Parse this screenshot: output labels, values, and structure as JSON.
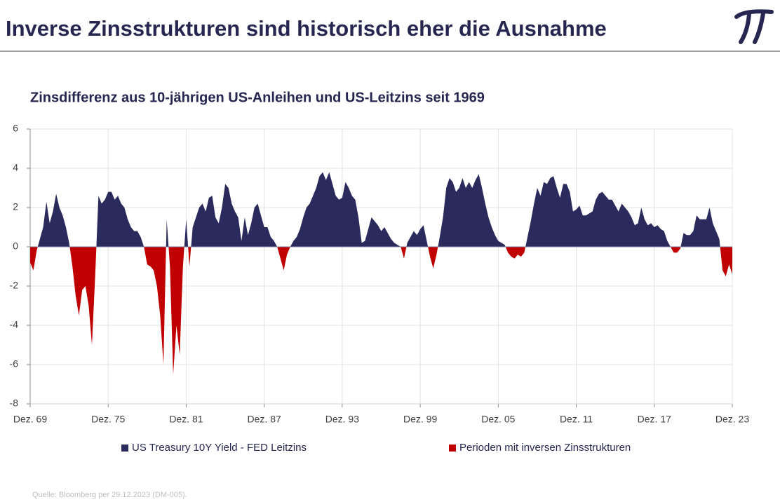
{
  "header": {
    "title": "Inverse Zinsstrukturen sind historisch eher die Ausnahme"
  },
  "footer": {
    "source": "Quelle: Bloomberg per 29.12.2023 (DM-005)."
  },
  "chart_data": {
    "type": "area",
    "title": "Zinsdifferenz aus 10-jährigen US-Anleihen und US-Leitzins seit 1969",
    "categories": [
      "Dez. 69",
      null,
      null,
      null,
      null,
      null,
      null,
      null,
      null,
      null,
      null,
      null,
      null,
      null,
      null,
      null,
      null,
      null,
      null,
      null,
      null,
      null,
      null,
      null,
      "Dez. 75",
      null,
      null,
      null,
      null,
      null,
      null,
      null,
      null,
      null,
      null,
      null,
      null,
      null,
      null,
      null,
      null,
      null,
      null,
      null,
      null,
      null,
      null,
      null,
      "Dez. 81",
      null,
      null,
      null,
      null,
      null,
      null,
      null,
      null,
      null,
      null,
      null,
      null,
      null,
      null,
      null,
      null,
      null,
      null,
      null,
      null,
      null,
      null,
      null,
      "Dez. 87",
      null,
      null,
      null,
      null,
      null,
      null,
      null,
      null,
      null,
      null,
      null,
      null,
      null,
      null,
      null,
      null,
      null,
      null,
      null,
      null,
      null,
      null,
      null,
      "Dez. 93",
      null,
      null,
      null,
      null,
      null,
      null,
      null,
      null,
      null,
      null,
      null,
      null,
      null,
      null,
      null,
      null,
      null,
      null,
      null,
      null,
      null,
      null,
      null,
      "Dez. 99",
      null,
      null,
      null,
      null,
      null,
      null,
      null,
      null,
      null,
      null,
      null,
      null,
      null,
      null,
      null,
      null,
      null,
      null,
      null,
      null,
      null,
      null,
      null,
      "Dez. 05",
      null,
      null,
      null,
      null,
      null,
      null,
      null,
      null,
      null,
      null,
      null,
      null,
      null,
      null,
      null,
      null,
      null,
      null,
      null,
      null,
      null,
      null,
      null,
      "Dez. 11",
      null,
      null,
      null,
      null,
      null,
      null,
      null,
      null,
      null,
      null,
      null,
      null,
      null,
      null,
      null,
      null,
      null,
      null,
      null,
      null,
      null,
      null,
      null,
      "Dez. 17",
      null,
      null,
      null,
      null,
      null,
      null,
      null,
      null,
      null,
      null,
      null,
      null,
      null,
      null,
      null,
      null,
      null,
      null,
      null,
      null,
      null,
      null,
      null,
      "Dez. 23"
    ],
    "series": [
      {
        "name": "US Treasury 10Y Yield - FED Leitzins",
        "color": "#2b2a5c",
        "values": [
          -0.8,
          -1.2,
          -0.2,
          0.4,
          1.0,
          2.3,
          1.2,
          1.8,
          2.7,
          2.0,
          1.6,
          1.0,
          0.2,
          -1.0,
          -2.5,
          -3.5,
          -2.2,
          -2.0,
          -3.0,
          -5.0,
          -1.5,
          2.6,
          2.2,
          2.4,
          2.8,
          2.8,
          2.4,
          2.6,
          2.2,
          2.0,
          1.4,
          1.0,
          0.8,
          0.8,
          0.5,
          0.0,
          -0.9,
          -1.0,
          -1.2,
          -2.0,
          -3.5,
          -6.0,
          1.4,
          -1.0,
          -6.5,
          -4.0,
          -5.5,
          -1.0,
          1.4,
          -1.0,
          1.0,
          1.5,
          2.0,
          2.2,
          1.8,
          2.5,
          2.6,
          1.5,
          1.2,
          2.0,
          3.2,
          3.0,
          2.2,
          1.8,
          1.5,
          0.3,
          1.5,
          0.6,
          1.2,
          2.0,
          2.2,
          1.6,
          1.0,
          1.0,
          0.5,
          0.3,
          0.0,
          -0.6,
          -1.2,
          -0.4,
          0.0,
          0.3,
          0.5,
          0.9,
          1.5,
          2.0,
          2.2,
          2.6,
          3.0,
          3.6,
          3.8,
          3.4,
          3.8,
          3.2,
          2.6,
          2.4,
          2.5,
          3.3,
          3.0,
          2.6,
          2.4,
          1.5,
          0.2,
          0.3,
          0.9,
          1.5,
          1.3,
          1.1,
          0.8,
          1.0,
          0.7,
          0.4,
          0.2,
          0.1,
          0.0,
          -0.6,
          0.2,
          0.5,
          0.8,
          0.6,
          0.9,
          1.1,
          0.3,
          -0.5,
          -1.1,
          -0.4,
          0.5,
          1.5,
          3.0,
          3.5,
          3.3,
          2.8,
          3.0,
          3.5,
          3.0,
          3.3,
          3.0,
          3.4,
          3.7,
          3.0,
          2.2,
          1.5,
          1.0,
          0.6,
          0.3,
          0.2,
          0.1,
          -0.3,
          -0.5,
          -0.6,
          -0.4,
          -0.5,
          -0.3,
          0.5,
          1.3,
          2.2,
          3.0,
          2.6,
          3.3,
          3.2,
          3.5,
          3.6,
          3.0,
          2.5,
          3.2,
          3.2,
          2.8,
          1.8,
          1.9,
          2.1,
          1.6,
          1.6,
          1.7,
          1.8,
          2.4,
          2.7,
          2.8,
          2.6,
          2.4,
          2.4,
          2.1,
          1.8,
          2.2,
          2.0,
          1.8,
          1.5,
          1.1,
          1.2,
          2.0,
          1.4,
          1.1,
          1.2,
          1.0,
          1.1,
          0.9,
          0.8,
          0.3,
          0.0,
          -0.3,
          -0.3,
          -0.1,
          0.7,
          0.6,
          0.6,
          0.8,
          1.6,
          1.4,
          1.4,
          1.4,
          2.0,
          1.2,
          0.8,
          0.4,
          -1.2,
          -1.5,
          -0.9,
          -1.4
        ]
      }
    ],
    "negative": {
      "name": "Perioden mit inversen Zinsstrukturen",
      "color": "#c00000"
    },
    "ylim": [
      -8,
      6
    ],
    "yticks": [
      -8,
      -6,
      -4,
      -2,
      0,
      2,
      4,
      6
    ],
    "grid": true
  }
}
